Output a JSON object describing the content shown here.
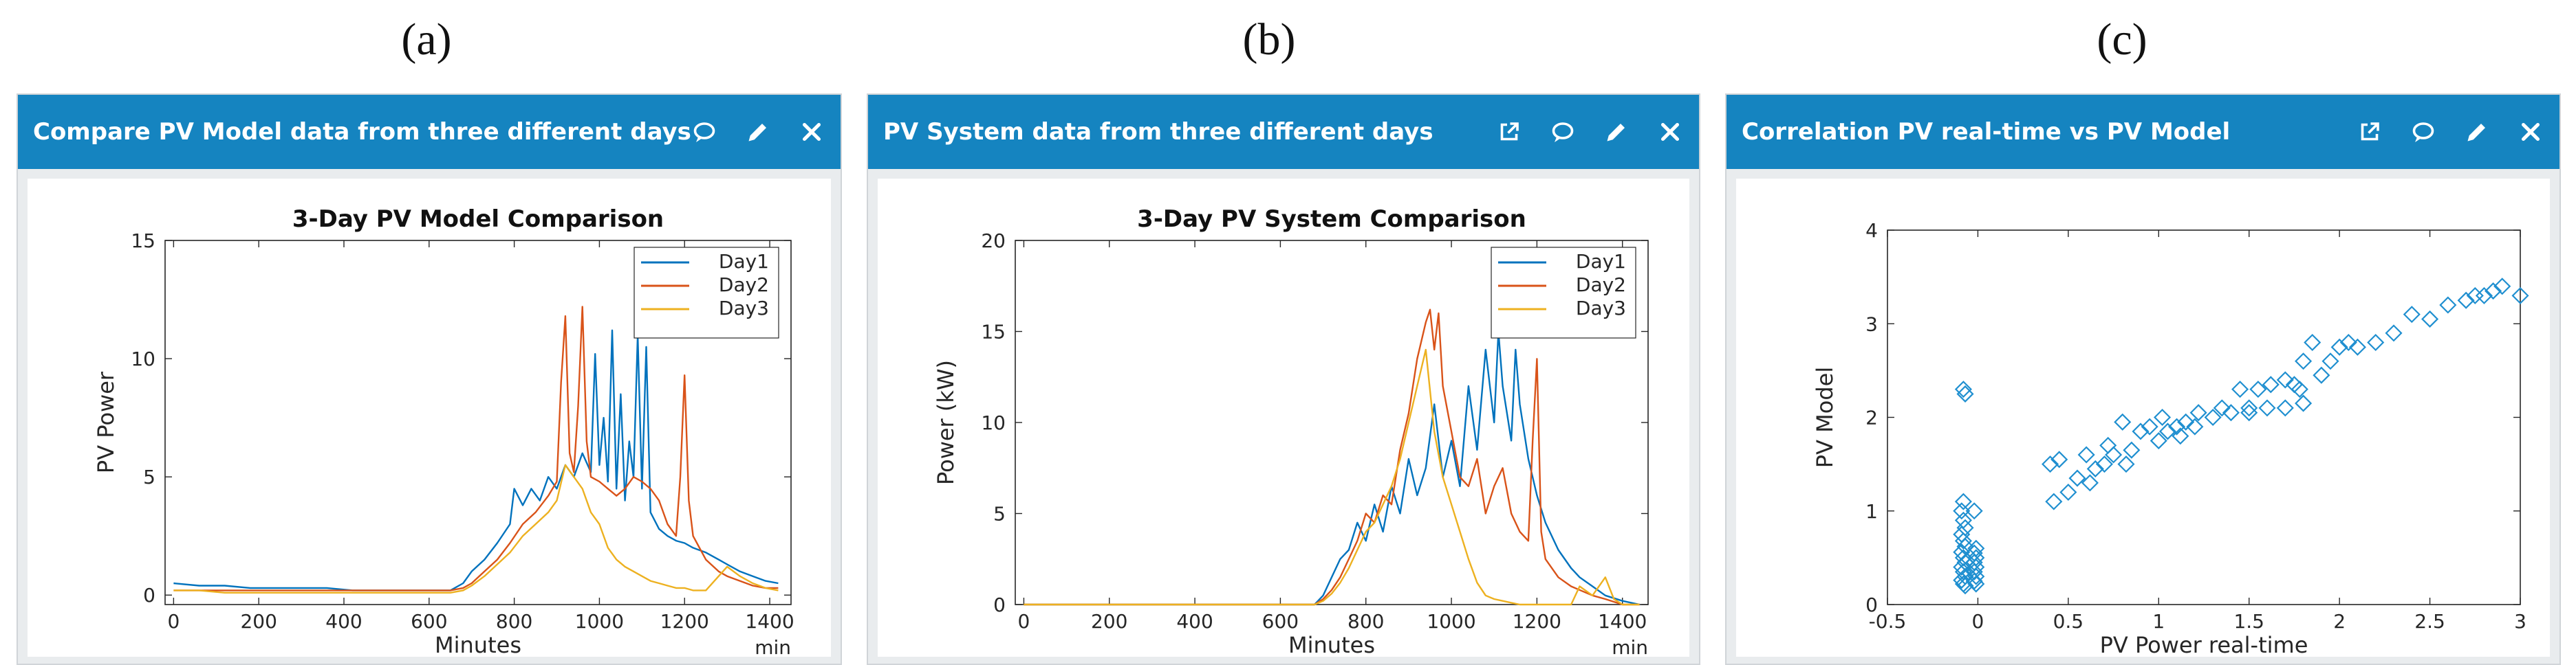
{
  "panel_labels": [
    "(a)",
    "(b)",
    "(c)"
  ],
  "panels": [
    {
      "title": "Compare PV Model data from three different days",
      "icons": [
        "comment-icon",
        "pencil-icon",
        "close-icon"
      ]
    },
    {
      "title": "PV System data from three different days",
      "icons": [
        "external-link-icon",
        "comment-icon",
        "pencil-icon",
        "close-icon"
      ]
    },
    {
      "title": "Correlation PV real-time vs PV Model",
      "icons": [
        "external-link-icon",
        "comment-icon",
        "pencil-icon",
        "close-icon"
      ]
    }
  ],
  "colors": {
    "day1": "#0072bd",
    "day2": "#d95319",
    "day3": "#edb120",
    "header": "#1584c0",
    "scatter": "#1f8fd0"
  },
  "chart_data": [
    {
      "type": "line",
      "title": "3-Day PV Model Comparison",
      "xlabel": "Minutes",
      "xunit": "min",
      "ylabel": "PV Power",
      "xlim": [
        -20,
        1450
      ],
      "ylim": [
        -0.4,
        15
      ],
      "xticks": [
        0,
        200,
        400,
        600,
        800,
        1000,
        1200,
        1400
      ],
      "yticks": [
        0,
        5,
        10,
        15
      ],
      "legend": "top-right",
      "series": [
        {
          "name": "Day1",
          "x": [
            0,
            60,
            120,
            180,
            240,
            300,
            360,
            420,
            480,
            540,
            600,
            650,
            680,
            700,
            730,
            760,
            790,
            800,
            820,
            840,
            860,
            880,
            900,
            920,
            940,
            960,
            980,
            990,
            1000,
            1010,
            1020,
            1030,
            1040,
            1050,
            1060,
            1070,
            1080,
            1090,
            1100,
            1110,
            1120,
            1140,
            1160,
            1180,
            1200,
            1220,
            1250,
            1280,
            1300,
            1330,
            1360,
            1390,
            1420
          ],
          "y": [
            0.5,
            0.4,
            0.4,
            0.3,
            0.3,
            0.3,
            0.3,
            0.2,
            0.2,
            0.2,
            0.2,
            0.2,
            0.5,
            1.0,
            1.5,
            2.2,
            3.0,
            4.5,
            3.8,
            4.5,
            4.0,
            5.0,
            4.5,
            5.5,
            5.0,
            6.0,
            5.2,
            10.2,
            5.5,
            7.5,
            4.8,
            11.2,
            4.5,
            8.5,
            4.0,
            6.5,
            5.0,
            11.0,
            4.5,
            10.5,
            3.5,
            2.8,
            2.5,
            2.3,
            2.2,
            2.0,
            1.8,
            1.5,
            1.3,
            1.0,
            0.8,
            0.6,
            0.5
          ]
        },
        {
          "name": "Day2",
          "x": [
            0,
            60,
            120,
            180,
            240,
            300,
            360,
            420,
            480,
            540,
            600,
            650,
            680,
            700,
            730,
            760,
            790,
            820,
            850,
            880,
            900,
            910,
            920,
            930,
            940,
            950,
            960,
            970,
            980,
            1000,
            1020,
            1040,
            1060,
            1080,
            1100,
            1120,
            1140,
            1160,
            1180,
            1190,
            1200,
            1210,
            1220,
            1250,
            1280,
            1300,
            1330,
            1360,
            1390,
            1420
          ],
          "y": [
            0.2,
            0.2,
            0.2,
            0.2,
            0.2,
            0.2,
            0.2,
            0.2,
            0.2,
            0.2,
            0.2,
            0.2,
            0.3,
            0.5,
            1.0,
            1.5,
            2.2,
            3.0,
            3.5,
            4.2,
            4.8,
            9.0,
            11.8,
            6.0,
            5.2,
            8.0,
            12.2,
            6.5,
            5.0,
            4.8,
            4.5,
            4.2,
            4.5,
            5.0,
            4.8,
            4.5,
            4.0,
            3.0,
            2.5,
            5.0,
            9.3,
            4.0,
            2.5,
            1.5,
            1.0,
            0.8,
            0.6,
            0.4,
            0.3,
            0.3
          ]
        },
        {
          "name": "Day3",
          "x": [
            0,
            60,
            120,
            180,
            240,
            300,
            360,
            420,
            480,
            540,
            600,
            650,
            680,
            700,
            730,
            760,
            790,
            820,
            850,
            880,
            900,
            920,
            940,
            960,
            980,
            1000,
            1020,
            1040,
            1060,
            1080,
            1100,
            1120,
            1140,
            1160,
            1180,
            1200,
            1220,
            1250,
            1280,
            1300,
            1330,
            1360,
            1390,
            1420
          ],
          "y": [
            0.2,
            0.2,
            0.1,
            0.1,
            0.1,
            0.1,
            0.1,
            0.1,
            0.1,
            0.1,
            0.1,
            0.1,
            0.2,
            0.4,
            0.8,
            1.3,
            1.8,
            2.5,
            3.0,
            3.5,
            4.0,
            5.5,
            5.0,
            4.5,
            3.5,
            3.0,
            2.0,
            1.5,
            1.2,
            1.0,
            0.8,
            0.6,
            0.5,
            0.4,
            0.3,
            0.3,
            0.2,
            0.2,
            0.8,
            1.2,
            0.8,
            0.5,
            0.3,
            0.2
          ]
        }
      ]
    },
    {
      "type": "line",
      "title": "3-Day PV System Comparison",
      "xlabel": "Minutes",
      "xunit": "min",
      "ylabel": "Power (kW)",
      "xlim": [
        -20,
        1460
      ],
      "ylim": [
        0,
        20
      ],
      "xticks": [
        0,
        200,
        400,
        600,
        800,
        1000,
        1200,
        1400
      ],
      "yticks": [
        0,
        5,
        10,
        15,
        20
      ],
      "legend": "top-right",
      "series": [
        {
          "name": "Day1",
          "x": [
            0,
            600,
            680,
            700,
            720,
            740,
            760,
            780,
            800,
            820,
            840,
            860,
            880,
            900,
            920,
            940,
            960,
            980,
            1000,
            1020,
            1040,
            1060,
            1080,
            1100,
            1110,
            1120,
            1130,
            1140,
            1150,
            1160,
            1180,
            1200,
            1220,
            1250,
            1280,
            1300,
            1330,
            1360,
            1400,
            1440
          ],
          "y": [
            0,
            0,
            0,
            0.5,
            1.5,
            2.5,
            3.0,
            4.5,
            3.5,
            5.5,
            4.0,
            6.5,
            5.0,
            8.0,
            6.0,
            7.5,
            11.0,
            7.0,
            9.0,
            6.5,
            12.0,
            8.5,
            14.0,
            10.0,
            15.0,
            12.0,
            10.5,
            9.0,
            14.0,
            11.0,
            8.0,
            6.0,
            4.5,
            3.0,
            2.0,
            1.5,
            1.0,
            0.5,
            0.2,
            0
          ]
        },
        {
          "name": "Day2",
          "x": [
            0,
            600,
            680,
            700,
            720,
            740,
            760,
            780,
            800,
            820,
            840,
            860,
            880,
            900,
            920,
            940,
            950,
            960,
            970,
            980,
            1000,
            1020,
            1040,
            1060,
            1080,
            1100,
            1120,
            1140,
            1160,
            1180,
            1190,
            1200,
            1210,
            1220,
            1250,
            1280,
            1300,
            1330,
            1360,
            1400,
            1440
          ],
          "y": [
            0,
            0,
            0,
            0.3,
            0.8,
            1.5,
            2.5,
            3.5,
            5.0,
            4.5,
            6.0,
            5.5,
            8.5,
            10.5,
            13.5,
            15.5,
            16.2,
            14.0,
            16.0,
            12.0,
            9.5,
            7.0,
            6.5,
            8.0,
            5.0,
            6.5,
            7.5,
            5.0,
            4.0,
            3.5,
            9.0,
            13.5,
            4.0,
            2.5,
            1.5,
            1.0,
            0.8,
            0.5,
            0.3,
            0,
            0
          ]
        },
        {
          "name": "Day3",
          "x": [
            0,
            600,
            680,
            700,
            720,
            740,
            760,
            780,
            800,
            820,
            840,
            860,
            880,
            900,
            920,
            940,
            960,
            980,
            1000,
            1020,
            1040,
            1060,
            1080,
            1100,
            1120,
            1140,
            1160,
            1180,
            1200,
            1220,
            1250,
            1280,
            1300,
            1330,
            1360,
            1380,
            1400,
            1440
          ],
          "y": [
            0,
            0,
            0,
            0.2,
            0.6,
            1.2,
            2.0,
            3.0,
            4.0,
            4.5,
            5.5,
            6.5,
            8.0,
            10.0,
            12.0,
            14.0,
            9.5,
            7.0,
            5.5,
            4.0,
            2.5,
            1.2,
            0.5,
            0.3,
            0.2,
            0.1,
            0,
            0,
            0,
            0,
            0,
            0,
            1.0,
            0.5,
            1.5,
            0.3,
            0,
            0
          ]
        }
      ]
    },
    {
      "type": "scatter",
      "title": "",
      "xlabel": "PV Power real-time",
      "ylabel": "PV Model",
      "xlim": [
        -0.5,
        3
      ],
      "ylim": [
        0,
        4
      ],
      "xticks": [
        -0.5,
        0,
        0.5,
        1,
        1.5,
        2,
        2.5,
        3
      ],
      "yticks": [
        0,
        1,
        2,
        3,
        4
      ],
      "marker": "diamond",
      "points": [
        [
          -0.08,
          2.3
        ],
        [
          -0.07,
          2.25
        ],
        [
          -0.08,
          1.1
        ],
        [
          -0.09,
          1.0
        ],
        [
          -0.08,
          0.9
        ],
        [
          -0.07,
          0.82
        ],
        [
          -0.09,
          0.75
        ],
        [
          -0.08,
          0.68
        ],
        [
          -0.07,
          0.62
        ],
        [
          -0.09,
          0.56
        ],
        [
          -0.08,
          0.5
        ],
        [
          -0.07,
          0.45
        ],
        [
          -0.09,
          0.4
        ],
        [
          -0.08,
          0.35
        ],
        [
          -0.07,
          0.3
        ],
        [
          -0.09,
          0.26
        ],
        [
          -0.08,
          0.22
        ],
        [
          -0.07,
          0.2
        ],
        [
          -0.02,
          1.0
        ],
        [
          -0.01,
          0.6
        ],
        [
          -0.02,
          0.55
        ],
        [
          -0.01,
          0.5
        ],
        [
          -0.02,
          0.45
        ],
        [
          -0.01,
          0.4
        ],
        [
          -0.02,
          0.35
        ],
        [
          -0.01,
          0.3
        ],
        [
          -0.02,
          0.25
        ],
        [
          -0.01,
          0.22
        ],
        [
          0.4,
          1.5
        ],
        [
          0.42,
          1.1
        ],
        [
          0.45,
          1.55
        ],
        [
          0.5,
          1.2
        ],
        [
          0.55,
          1.35
        ],
        [
          0.6,
          1.6
        ],
        [
          0.62,
          1.3
        ],
        [
          0.65,
          1.45
        ],
        [
          0.7,
          1.5
        ],
        [
          0.72,
          1.7
        ],
        [
          0.75,
          1.6
        ],
        [
          0.8,
          1.95
        ],
        [
          0.82,
          1.5
        ],
        [
          0.85,
          1.65
        ],
        [
          0.9,
          1.85
        ],
        [
          0.95,
          1.9
        ],
        [
          1.0,
          1.75
        ],
        [
          1.02,
          2.0
        ],
        [
          1.05,
          1.85
        ],
        [
          1.1,
          1.9
        ],
        [
          1.12,
          1.8
        ],
        [
          1.15,
          1.95
        ],
        [
          1.2,
          1.9
        ],
        [
          1.22,
          2.05
        ],
        [
          1.3,
          2.0
        ],
        [
          1.35,
          2.1
        ],
        [
          1.4,
          2.05
        ],
        [
          1.45,
          2.3
        ],
        [
          1.5,
          2.05
        ],
        [
          1.5,
          2.1
        ],
        [
          1.55,
          2.3
        ],
        [
          1.6,
          2.1
        ],
        [
          1.62,
          2.35
        ],
        [
          1.7,
          2.1
        ],
        [
          1.7,
          2.4
        ],
        [
          1.75,
          2.35
        ],
        [
          1.78,
          2.3
        ],
        [
          1.8,
          2.6
        ],
        [
          1.8,
          2.15
        ],
        [
          1.85,
          2.8
        ],
        [
          1.9,
          2.45
        ],
        [
          1.95,
          2.6
        ],
        [
          2.0,
          2.75
        ],
        [
          2.05,
          2.8
        ],
        [
          2.1,
          2.75
        ],
        [
          2.2,
          2.8
        ],
        [
          2.3,
          2.9
        ],
        [
          2.4,
          3.1
        ],
        [
          2.5,
          3.05
        ],
        [
          2.6,
          3.2
        ],
        [
          2.7,
          3.25
        ],
        [
          2.75,
          3.3
        ],
        [
          2.8,
          3.3
        ],
        [
          2.85,
          3.35
        ],
        [
          2.9,
          3.4
        ],
        [
          3.0,
          3.3
        ]
      ]
    }
  ]
}
